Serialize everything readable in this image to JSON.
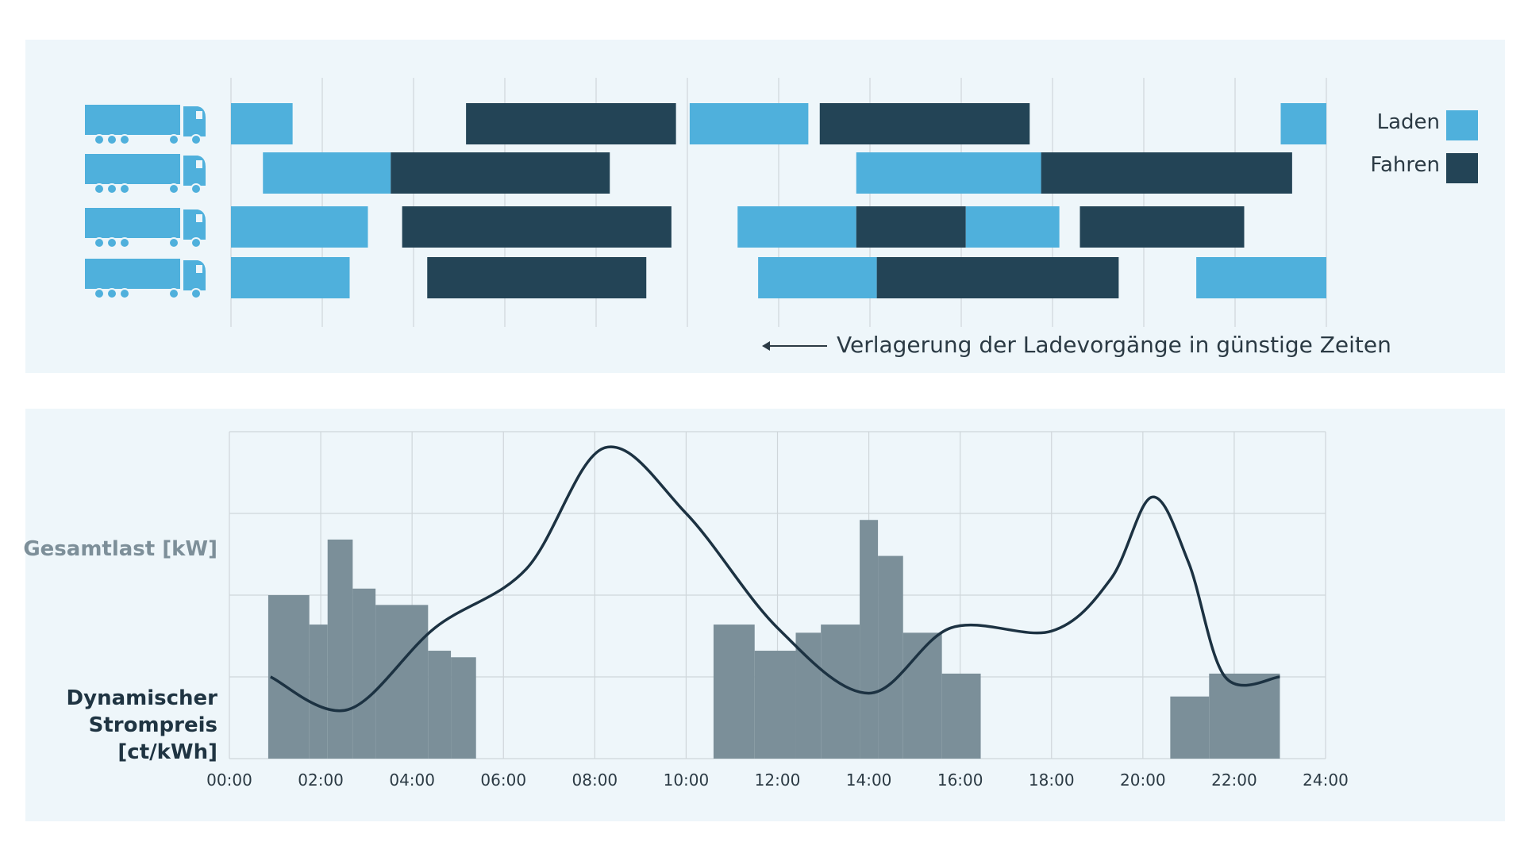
{
  "colors": {
    "panel_bg": "#eef6fa",
    "charge": "#4fb0dc",
    "drive": "#234456",
    "truck": "#4fb0dc",
    "load_bars": "#7b8f99",
    "price_line": "#1c3242",
    "grid": "#cfd6da"
  },
  "chart_data": [
    {
      "type": "gantt",
      "title": "",
      "x_unit": "hour",
      "xlim": [
        0,
        24
      ],
      "legend": [
        {
          "key": "charge",
          "label": "Laden"
        },
        {
          "key": "drive",
          "label": "Fahren"
        }
      ],
      "legend_position": "right",
      "rows": [
        {
          "name": "truck-1",
          "segments": [
            {
              "type": "charge",
              "start": 0.0,
              "end": 1.35
            },
            {
              "type": "drive",
              "start": 5.15,
              "end": 9.75
            },
            {
              "type": "charge",
              "start": 10.05,
              "end": 12.65
            },
            {
              "type": "drive",
              "start": 12.9,
              "end": 17.5
            },
            {
              "type": "charge",
              "start": 23.0,
              "end": 24.0
            }
          ]
        },
        {
          "name": "truck-2",
          "segments": [
            {
              "type": "charge",
              "start": 0.7,
              "end": 3.5
            },
            {
              "type": "drive",
              "start": 3.5,
              "end": 8.3
            },
            {
              "type": "charge",
              "start": 13.7,
              "end": 17.75
            },
            {
              "type": "drive",
              "start": 17.75,
              "end": 23.25
            }
          ]
        },
        {
          "name": "truck-3",
          "segments": [
            {
              "type": "charge",
              "start": 0.0,
              "end": 3.0
            },
            {
              "type": "drive",
              "start": 3.75,
              "end": 9.65
            },
            {
              "type": "charge",
              "start": 11.1,
              "end": 13.7
            },
            {
              "type": "drive",
              "start": 13.7,
              "end": 16.1
            },
            {
              "type": "charge",
              "start": 16.1,
              "end": 18.15
            },
            {
              "type": "drive",
              "start": 18.6,
              "end": 22.2
            }
          ]
        },
        {
          "name": "truck-4",
          "segments": [
            {
              "type": "charge",
              "start": 0.0,
              "end": 2.6
            },
            {
              "type": "drive",
              "start": 4.3,
              "end": 9.1
            },
            {
              "type": "charge",
              "start": 11.55,
              "end": 14.15
            },
            {
              "type": "drive",
              "start": 14.15,
              "end": 19.45
            },
            {
              "type": "charge",
              "start": 21.15,
              "end": 24.0
            }
          ]
        }
      ],
      "annotation": "Verlagerung der Ladevorgänge in günstige Zeiten"
    },
    {
      "type": "bar+line",
      "xlim": [
        0,
        24
      ],
      "ylim": [
        0,
        100
      ],
      "x_ticks": [
        "00:00",
        "02:00",
        "04:00",
        "06:00",
        "08:00",
        "10:00",
        "12:00",
        "14:00",
        "16:00",
        "18:00",
        "20:00",
        "22:00",
        "24:00"
      ],
      "grid": true,
      "ylabel_bars": "Gesamtlast [kW]",
      "ylabel_line": "Dynamischer Strompreis [ct/kWh]",
      "bars": [
        {
          "start": 0.85,
          "end": 1.75,
          "value": 50
        },
        {
          "start": 1.75,
          "end": 2.15,
          "value": 41
        },
        {
          "start": 2.15,
          "end": 2.7,
          "value": 67
        },
        {
          "start": 2.7,
          "end": 3.2,
          "value": 52
        },
        {
          "start": 3.2,
          "end": 4.35,
          "value": 47
        },
        {
          "start": 4.35,
          "end": 4.85,
          "value": 33
        },
        {
          "start": 4.85,
          "end": 5.4,
          "value": 31
        },
        {
          "start": 10.6,
          "end": 11.5,
          "value": 41
        },
        {
          "start": 11.5,
          "end": 12.4,
          "value": 33
        },
        {
          "start": 12.4,
          "end": 12.95,
          "value": 38.5
        },
        {
          "start": 12.95,
          "end": 13.8,
          "value": 41
        },
        {
          "start": 13.8,
          "end": 14.2,
          "value": 73
        },
        {
          "start": 14.2,
          "end": 14.75,
          "value": 62
        },
        {
          "start": 14.75,
          "end": 15.6,
          "value": 38.5
        },
        {
          "start": 15.6,
          "end": 16.45,
          "value": 26
        },
        {
          "start": 20.6,
          "end": 21.45,
          "value": 19
        },
        {
          "start": 21.45,
          "end": 23.0,
          "value": 26
        }
      ],
      "price_line": {
        "x": [
          0.9,
          2.6,
          4.5,
          6.5,
          8.2,
          10.0,
          12.0,
          14.0,
          15.8,
          18.0,
          19.3,
          20.2,
          21.0,
          21.8,
          23.0
        ],
        "y": [
          25,
          15,
          40,
          58,
          95,
          75,
          40,
          20,
          40,
          39,
          55,
          80,
          60,
          25,
          25
        ]
      }
    }
  ]
}
